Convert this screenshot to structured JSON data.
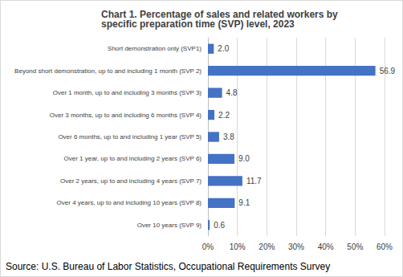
{
  "chart_data": {
    "type": "bar",
    "orientation": "horizontal",
    "title": "Chart 1. Percentage of sales and related workers by specific preparation time (SVP) level, 2023",
    "source": "Source: U.S. Bureau of Labor Statistics, Occupational Requirements Survey",
    "categories": [
      "Short demonstration only (SVP1)",
      "Beyond short demonstration, up to and including 1 month (SVP 2)",
      "Over 1 month, up to and including 3 months (SVP 3)",
      "Over 3 months, up to and including 6 months (SVP 4)",
      "Over 6 months, up to and including 1 year (SVP 5)",
      "Over 1 year, up to and including 2 years (SVP 6)",
      "Over 2 years, up to and including 4 years (SVP 7)",
      "Over 4 years, up to and including 10 years (SVP 8)",
      "Over 10 years (SVP 9)"
    ],
    "values": [
      2.0,
      56.9,
      4.8,
      2.2,
      3.8,
      9.0,
      11.7,
      9.1,
      0.6
    ],
    "value_labels": [
      "2.0",
      "56.9",
      "4.8",
      "2.2",
      "3.8",
      "9.0",
      "11.7",
      "9.1",
      "0.6"
    ],
    "color": "#4472c4",
    "xlim": [
      0,
      60
    ],
    "xticks": [
      {
        "value": 0,
        "label": "0%"
      },
      {
        "value": 10,
        "label": "10%"
      },
      {
        "value": 20,
        "label": "20%"
      },
      {
        "value": 30,
        "label": "30%"
      },
      {
        "value": 40,
        "label": "40%"
      },
      {
        "value": 50,
        "label": "50%"
      },
      {
        "value": 60,
        "label": "60%"
      }
    ],
    "grid": true,
    "data_labels": true
  }
}
